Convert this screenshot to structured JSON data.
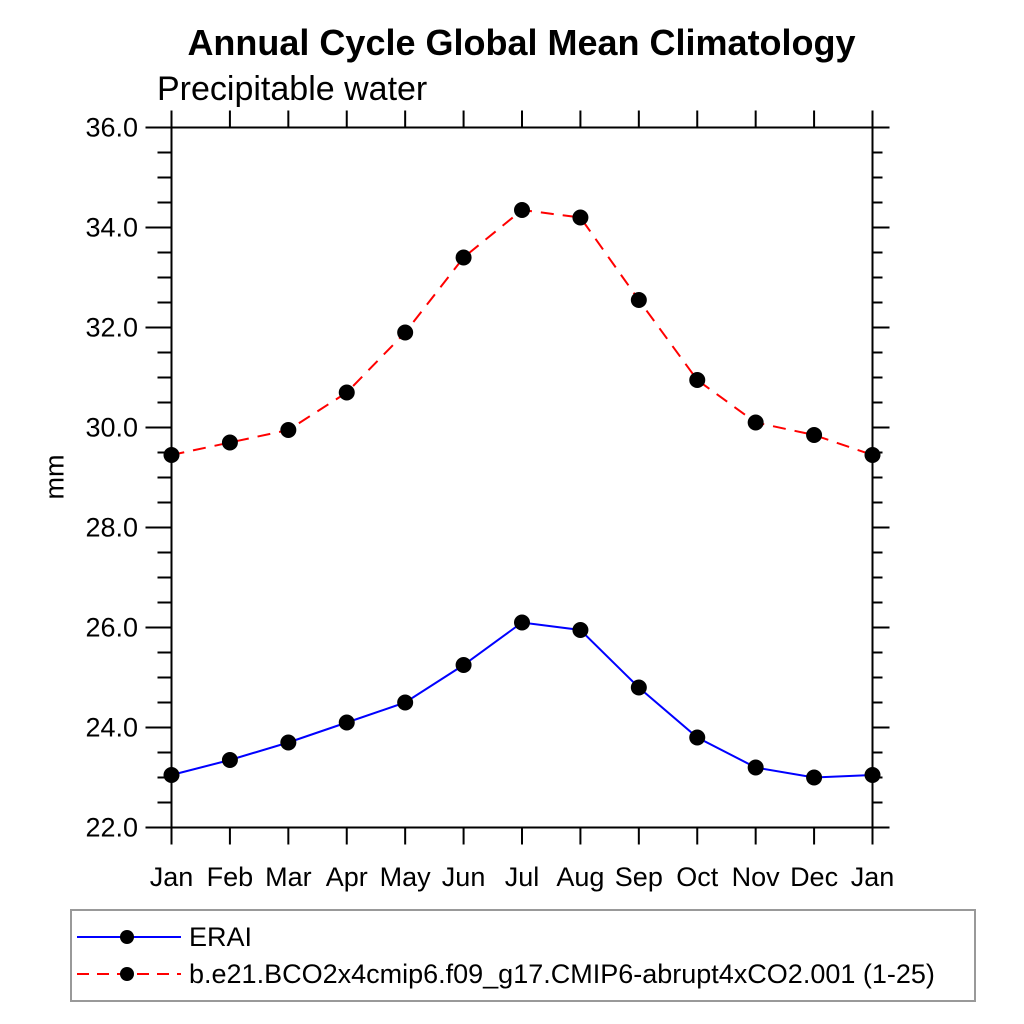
{
  "chart_data": {
    "type": "line",
    "title": "Annual Cycle Global Mean Climatology",
    "subtitle": "Precipitable water",
    "xlabel": "",
    "ylabel": "mm",
    "categories": [
      "Jan",
      "Feb",
      "Mar",
      "Apr",
      "May",
      "Jun",
      "Jul",
      "Aug",
      "Sep",
      "Oct",
      "Nov",
      "Dec",
      "Jan"
    ],
    "ylim": [
      22.0,
      36.0
    ],
    "ytick_step_major": 2.0,
    "ytick_step_minor": 0.5,
    "ytick_labels": [
      "22.0",
      "24.0",
      "26.0",
      "28.0",
      "30.0",
      "32.0",
      "34.0",
      "36.0"
    ],
    "grid": false,
    "legend_position": "bottom-left-box",
    "axis_color": "#000000",
    "background_color": "#ffffff",
    "marker": "filled-circle",
    "marker_color": "#000000",
    "series": [
      {
        "name": "ERAI",
        "color": "#0000ff",
        "line_style": "solid",
        "values": [
          23.05,
          23.35,
          23.7,
          24.1,
          24.5,
          25.25,
          26.1,
          25.95,
          24.8,
          23.8,
          23.2,
          23.0,
          23.05
        ]
      },
      {
        "name": "b.e21.BCO2x4cmip6.f09_g17.CMIP6-abrupt4xCO2.001 (1-25)",
        "color": "#ff0000",
        "line_style": "dashed",
        "values": [
          29.45,
          29.7,
          29.95,
          30.7,
          31.9,
          33.4,
          34.35,
          34.2,
          32.55,
          30.95,
          30.1,
          29.85,
          29.45
        ]
      }
    ]
  }
}
